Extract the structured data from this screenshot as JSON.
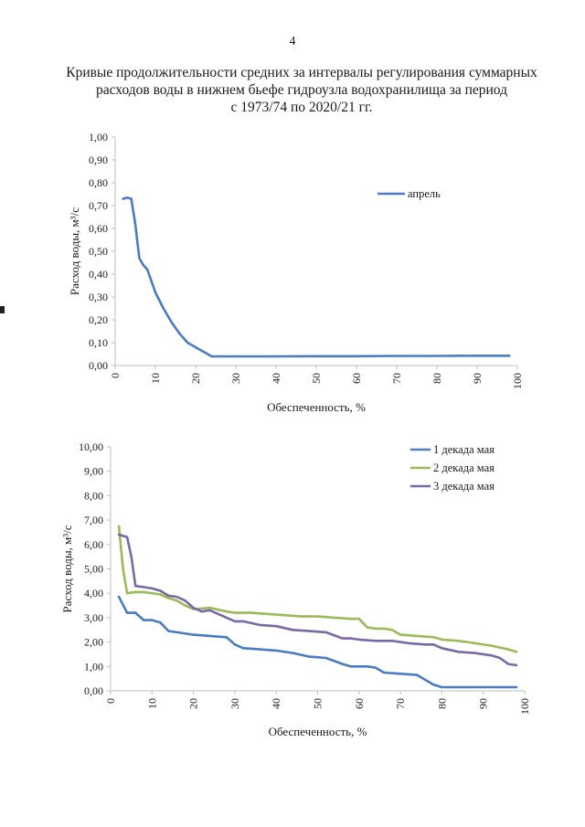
{
  "page": {
    "number": "4",
    "title_lines": [
      "Кривые продолжительности средних за интервалы регулирования суммарных",
      "расходов воды в нижнем бьефе гидроузла водохранилища за период",
      "с 1973/74 по 2020/21 гг."
    ]
  },
  "colors": {
    "blue": "#4a7cc4",
    "green": "#9bbb59",
    "purple": "#7b68a6",
    "axis": "#bfbfbf"
  },
  "chart_data": [
    {
      "type": "line",
      "xlabel": "Обеспеченность, %",
      "ylabel": "Расход воды, м³/с",
      "xlim": [
        0,
        100
      ],
      "ylim": [
        0,
        1
      ],
      "x_ticks": [
        "0",
        "10",
        "20",
        "30",
        "40",
        "50",
        "60",
        "70",
        "80",
        "90",
        "100"
      ],
      "y_ticks": [
        "0,00",
        "0,10",
        "0,20",
        "0,30",
        "0,40",
        "0,50",
        "0,60",
        "0,70",
        "0,80",
        "0,90",
        "1,00"
      ],
      "legend_position": "top-right",
      "series": [
        {
          "name": "апрель",
          "color": "#4a7cc4",
          "x": [
            2,
            3,
            4,
            5,
            6,
            7,
            8,
            9,
            10,
            12,
            14,
            16,
            18,
            20,
            22,
            24,
            30,
            40,
            50,
            60,
            70,
            80,
            90,
            98
          ],
          "y": [
            0.73,
            0.735,
            0.73,
            0.62,
            0.47,
            0.44,
            0.42,
            0.37,
            0.32,
            0.25,
            0.19,
            0.14,
            0.1,
            0.08,
            0.06,
            0.04,
            0.04,
            0.04,
            0.041,
            0.041,
            0.042,
            0.042,
            0.043,
            0.043
          ]
        }
      ]
    },
    {
      "type": "line",
      "xlabel": "Обеспеченность, %",
      "ylabel": "Расход воды, м³/с",
      "xlim": [
        0,
        100
      ],
      "ylim": [
        0,
        10
      ],
      "x_ticks": [
        "0",
        "10",
        "20",
        "30",
        "40",
        "50",
        "60",
        "70",
        "80",
        "90",
        "100"
      ],
      "y_ticks": [
        "0,00",
        "1,00",
        "2,00",
        "3,00",
        "4,00",
        "5,00",
        "6,00",
        "7,00",
        "8,00",
        "9,00",
        "10,00"
      ],
      "legend_position": "top-right",
      "series": [
        {
          "name": "1 декада мая",
          "color": "#4a7cc4",
          "x": [
            2,
            4,
            6,
            8,
            10,
            12,
            14,
            16,
            20,
            24,
            28,
            30,
            32,
            36,
            40,
            44,
            48,
            52,
            56,
            58,
            60,
            62,
            64,
            66,
            70,
            74,
            76,
            78,
            80,
            82,
            86,
            90,
            94,
            98
          ],
          "y": [
            3.85,
            3.2,
            3.2,
            2.9,
            2.9,
            2.8,
            2.45,
            2.4,
            2.3,
            2.25,
            2.2,
            1.9,
            1.75,
            1.7,
            1.65,
            1.55,
            1.4,
            1.35,
            1.1,
            1.0,
            1.0,
            1.0,
            0.95,
            0.75,
            0.7,
            0.65,
            0.45,
            0.25,
            0.15,
            0.15,
            0.15,
            0.15,
            0.15,
            0.15
          ]
        },
        {
          "name": "2 декада мая",
          "color": "#9bbb59",
          "x": [
            2,
            3,
            4,
            6,
            8,
            10,
            12,
            14,
            16,
            18,
            20,
            24,
            28,
            30,
            34,
            38,
            42,
            46,
            50,
            54,
            58,
            60,
            62,
            64,
            66,
            68,
            70,
            74,
            78,
            80,
            84,
            88,
            92,
            96,
            98
          ],
          "y": [
            6.75,
            5.0,
            4.0,
            4.05,
            4.05,
            4.0,
            3.95,
            3.8,
            3.7,
            3.5,
            3.35,
            3.4,
            3.25,
            3.2,
            3.2,
            3.15,
            3.1,
            3.05,
            3.05,
            3.0,
            2.95,
            2.95,
            2.6,
            2.55,
            2.55,
            2.5,
            2.3,
            2.25,
            2.2,
            2.1,
            2.05,
            1.95,
            1.85,
            1.7,
            1.6
          ]
        },
        {
          "name": "3 декада мая",
          "color": "#7b68a6",
          "x": [
            2,
            4,
            5,
            6,
            8,
            10,
            12,
            14,
            16,
            18,
            20,
            22,
            24,
            28,
            30,
            32,
            36,
            40,
            44,
            48,
            52,
            56,
            58,
            60,
            64,
            68,
            72,
            76,
            78,
            80,
            84,
            88,
            92,
            94,
            96,
            98
          ],
          "y": [
            6.4,
            6.3,
            5.5,
            4.3,
            4.25,
            4.2,
            4.1,
            3.9,
            3.85,
            3.7,
            3.4,
            3.25,
            3.3,
            3.0,
            2.85,
            2.85,
            2.7,
            2.65,
            2.5,
            2.45,
            2.4,
            2.15,
            2.15,
            2.1,
            2.05,
            2.05,
            1.95,
            1.9,
            1.9,
            1.75,
            1.6,
            1.55,
            1.45,
            1.35,
            1.1,
            1.05
          ]
        }
      ]
    }
  ]
}
